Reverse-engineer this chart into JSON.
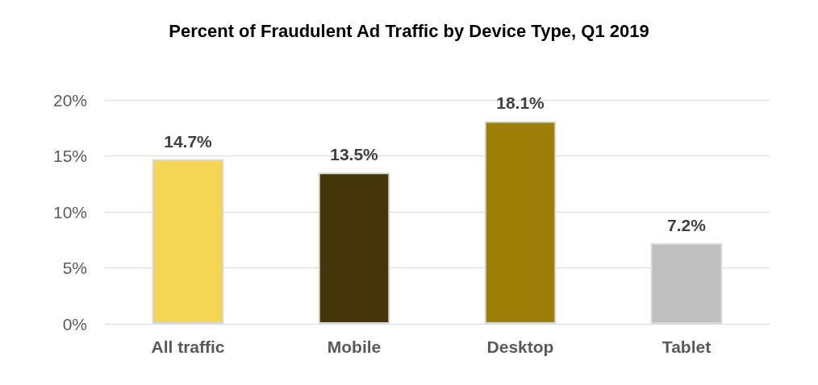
{
  "chart_data": {
    "type": "bar",
    "title": "Percent of Fraudulent Ad Traffic by Device Type, Q1 2019",
    "categories": [
      "All traffic",
      "Mobile",
      "Desktop",
      "Tablet"
    ],
    "values": [
      14.7,
      13.5,
      18.1,
      7.2
    ],
    "colors": [
      "#f4d553",
      "#433709",
      "#9c7e08",
      "#bfbfbf"
    ],
    "value_labels": [
      "14.7%",
      "13.5%",
      "18.1%",
      "7.2%"
    ],
    "ylim": [
      0,
      20
    ],
    "yticks": [
      {
        "value": 0,
        "label": "0%"
      },
      {
        "value": 5,
        "label": "5%"
      },
      {
        "value": 10,
        "label": "10%"
      },
      {
        "value": 15,
        "label": "15%"
      },
      {
        "value": 20,
        "label": "20%"
      }
    ],
    "grid": "y"
  }
}
